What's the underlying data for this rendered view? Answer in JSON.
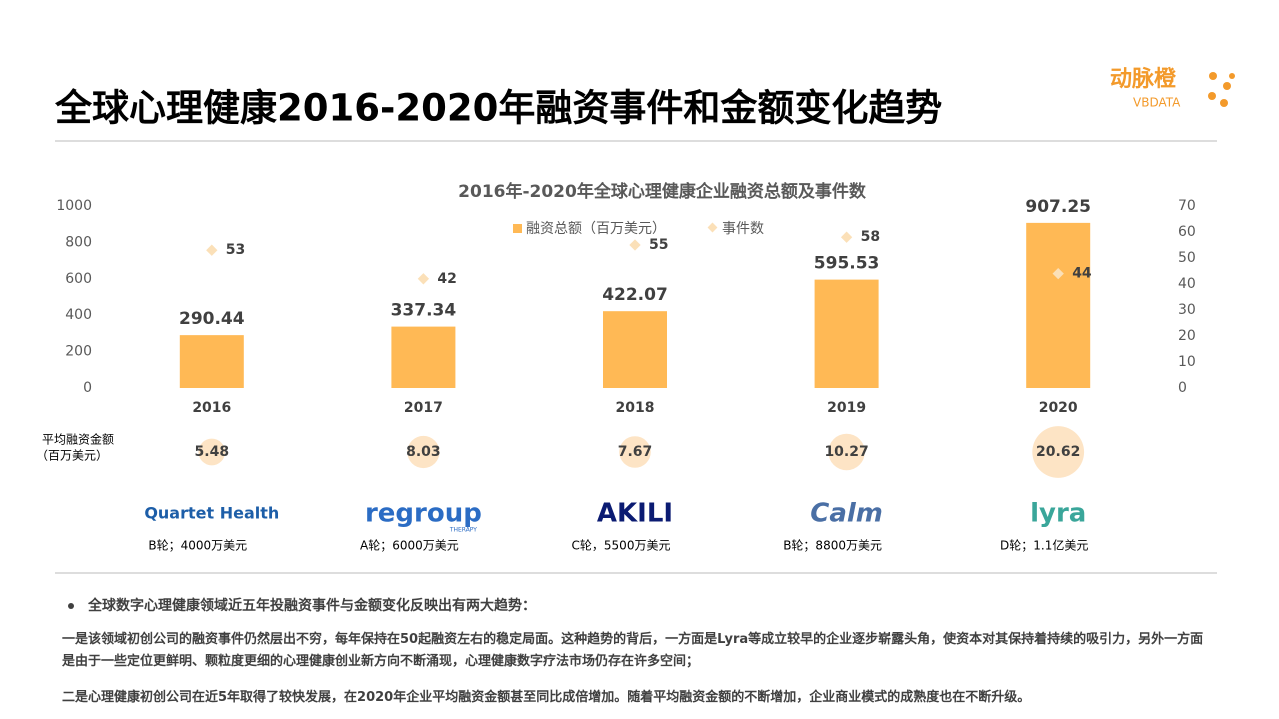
{
  "header": {
    "title": "全球心理健康2016-2020年融资事件和金额变化趋势",
    "logo_cn": "动脉橙",
    "logo_en": "VBDATA"
  },
  "chart_data": {
    "type": "bar",
    "title": "2016年-2020年全球心理健康企业融资总额及事件数",
    "categories": [
      "2016",
      "2017",
      "2018",
      "2019",
      "2020"
    ],
    "series": [
      {
        "name": "融资总额（百万美元）",
        "color": "#ffb955",
        "values": [
          290.44,
          337.34,
          422.07,
          595.53,
          907.25
        ]
      },
      {
        "name": "事件数",
        "color": "#fbe0b8",
        "axis": "y2",
        "values": [
          53,
          42,
          55,
          58,
          44
        ]
      }
    ],
    "ylim": [
      0,
      1000
    ],
    "yticks": [
      0,
      200,
      400,
      600,
      800,
      1000
    ],
    "y2lim": [
      0,
      70
    ],
    "y2ticks": [
      0,
      10,
      20,
      30,
      40,
      50,
      60,
      70
    ],
    "grid": false
  },
  "average": {
    "label_lines": [
      "平均融资金额",
      "（百万美元）"
    ],
    "values": [
      5.48,
      8.03,
      7.67,
      10.27,
      20.62
    ]
  },
  "companies": [
    {
      "logo": "Quartet Health",
      "round": "B轮；4000万美元"
    },
    {
      "logo": "regroup",
      "sub": "THERAPY",
      "round": "A轮；6000万美元"
    },
    {
      "logo": "AKILI",
      "round": "C轮，5500万美元"
    },
    {
      "logo": "Calm",
      "round": "B轮；8800万美元"
    },
    {
      "logo": "lyra",
      "round": "D轮；1.1亿美元"
    }
  ],
  "notes": {
    "bullet": "全球数字心理健康领域近五年投融资事件与金额变化反映出有两大趋势：",
    "paragraphs": [
      "一是该领域初创公司的融资事件仍然层出不穷，每年保持在50起融资左右的稳定局面。这种趋势的背后，一方面是Lyra等成立较早的企业逐步崭露头角，使资本对其保持着持续的吸引力，另外一方面是由于一些定位更鲜明、颗粒度更细的心理健康创业新方向不断涌现，心理健康数字疗法市场仍存在许多空间；",
      "二是心理健康初创公司在近5年取得了较快发展，在2020年企业平均融资金额甚至同比成倍增加。随着平均融资金额的不断增加，企业商业模式的成熟度也在不断升级。"
    ]
  }
}
